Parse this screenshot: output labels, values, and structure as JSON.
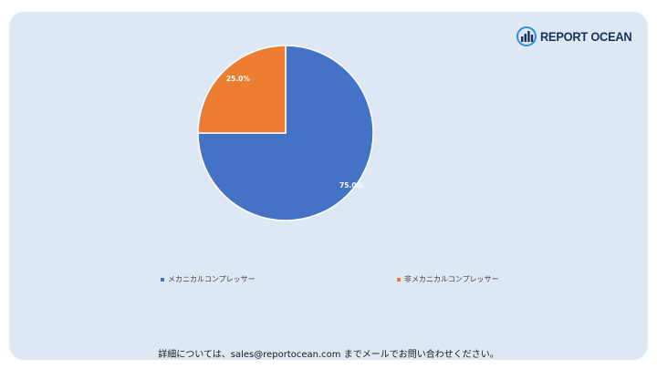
{
  "brand": {
    "logo_text": "REPORT OCEAN"
  },
  "chart_data": {
    "type": "pie",
    "categories": [
      "メカニカルコンプレッサー",
      "非メカニカルコンプレッサー"
    ],
    "values": [
      75.0,
      25.0
    ],
    "data_labels": [
      "75.0%",
      "25.0%"
    ],
    "colors": [
      "#4472c4",
      "#ed7d31"
    ],
    "legend_position": "bottom",
    "title": "",
    "start_angle": "12 o'clock, clockwise"
  },
  "footer": {
    "contact_text": "詳細については、sales@reportocean.com までメールでお問い合わせください。"
  }
}
